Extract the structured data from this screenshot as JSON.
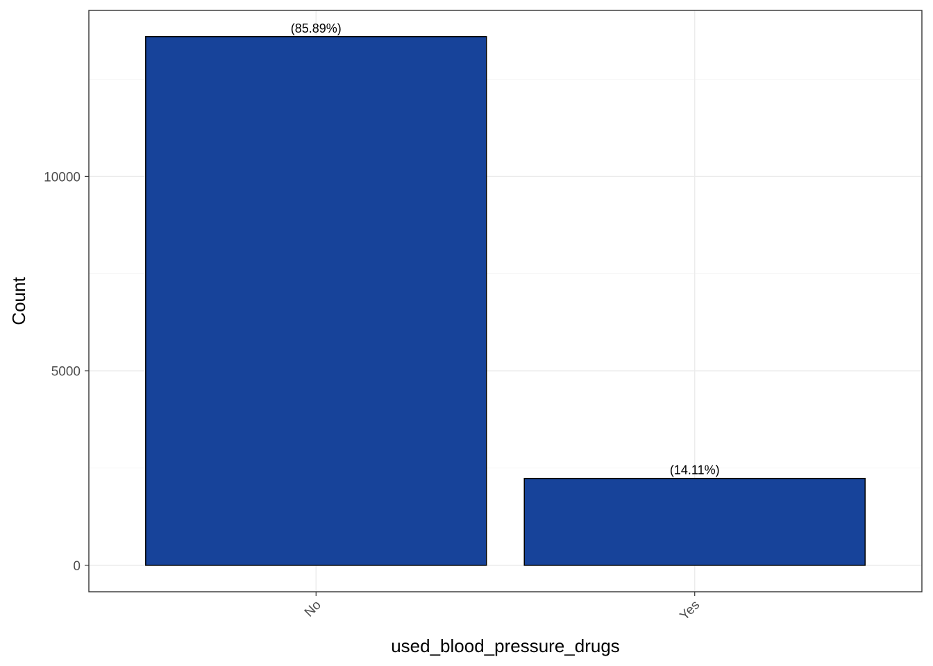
{
  "chart_data": {
    "type": "bar",
    "categories": [
      "No",
      "Yes"
    ],
    "values": [
      13596,
      2234
    ],
    "data_labels": [
      "(85.89%)",
      "(14.11%)"
    ],
    "title": "",
    "xlabel": "used_blood_pressure_drugs",
    "ylabel": "Count",
    "ylim": [
      -680,
      14270
    ],
    "y_ticks": [
      0,
      5000,
      10000
    ],
    "y_tick_labels": [
      "0",
      "5000",
      "10000"
    ],
    "y_minor_ticks": [
      2500,
      7500,
      12500
    ],
    "grid": true,
    "legend": "none",
    "bar_color": "#17439a",
    "bar_border_color": "#000000",
    "x_tick_label_rotation_deg": -45
  }
}
